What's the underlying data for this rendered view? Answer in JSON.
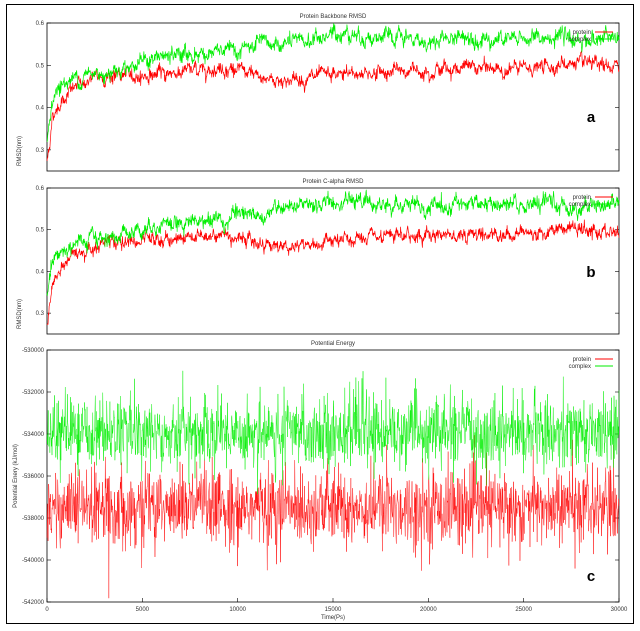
{
  "chart_data": [
    {
      "type": "line",
      "panel": "a",
      "title": "Protein Backbone RMSD",
      "xlabel": "",
      "ylabel": "RMSD(nm)",
      "xlim": [
        0,
        30000
      ],
      "ylim": [
        0.25,
        0.6
      ],
      "y_ticks": [
        "0.3",
        "0.4",
        "0.5",
        "0.6"
      ],
      "y_tick_values": [
        0.3,
        0.4,
        0.5,
        0.6
      ],
      "legend_position": "top-right",
      "series": [
        {
          "name": "protein",
          "color": "#ff0000",
          "x": [
            0,
            300,
            800,
            1500,
            2500,
            3500,
            5000,
            7000,
            9000,
            10000,
            11000,
            12500,
            14000,
            16000,
            18000,
            20000,
            22000,
            24000,
            26000,
            27500,
            29000,
            30000
          ],
          "y": [
            0.27,
            0.38,
            0.42,
            0.45,
            0.47,
            0.475,
            0.475,
            0.485,
            0.495,
            0.49,
            0.47,
            0.465,
            0.47,
            0.48,
            0.485,
            0.49,
            0.495,
            0.49,
            0.495,
            0.505,
            0.495,
            0.495
          ],
          "noise": 0.012
        },
        {
          "name": "complex",
          "color": "#00ee00",
          "x": [
            0,
            300,
            800,
            1500,
            2500,
            3500,
            5000,
            7000,
            9000,
            10000,
            11000,
            12500,
            14000,
            15500,
            17000,
            19000,
            20000,
            22000,
            24000,
            26000,
            28000,
            30000
          ],
          "y": [
            0.32,
            0.43,
            0.455,
            0.47,
            0.48,
            0.49,
            0.51,
            0.525,
            0.53,
            0.535,
            0.545,
            0.55,
            0.56,
            0.58,
            0.565,
            0.56,
            0.555,
            0.57,
            0.56,
            0.565,
            0.56,
            0.565
          ],
          "noise": 0.014
        }
      ]
    },
    {
      "type": "line",
      "panel": "b",
      "title": "Protein C-alpha RMSD",
      "xlabel": "",
      "ylabel": "RMSD(nm)",
      "xlim": [
        0,
        30000
      ],
      "ylim": [
        0.25,
        0.6
      ],
      "y_ticks": [
        "0.3",
        "0.4",
        "0.5",
        "0.6"
      ],
      "y_tick_values": [
        0.3,
        0.4,
        0.5,
        0.6
      ],
      "legend_position": "top-right",
      "series": [
        {
          "name": "protein",
          "color": "#ff0000",
          "x": [
            0,
            300,
            800,
            1500,
            2500,
            3500,
            5000,
            7000,
            9000,
            10000,
            11000,
            12500,
            14000,
            16000,
            18000,
            20000,
            22000,
            24000,
            26000,
            27500,
            29000,
            30000
          ],
          "y": [
            0.27,
            0.37,
            0.41,
            0.44,
            0.465,
            0.47,
            0.47,
            0.48,
            0.49,
            0.485,
            0.47,
            0.46,
            0.465,
            0.475,
            0.48,
            0.49,
            0.49,
            0.49,
            0.495,
            0.505,
            0.49,
            0.495
          ],
          "noise": 0.012
        },
        {
          "name": "complex",
          "color": "#00ee00",
          "x": [
            0,
            300,
            800,
            1500,
            2500,
            3500,
            5000,
            7000,
            9000,
            10000,
            11000,
            12500,
            14000,
            15500,
            17000,
            19000,
            20000,
            22000,
            24000,
            26000,
            28000,
            30000
          ],
          "y": [
            0.33,
            0.43,
            0.45,
            0.465,
            0.475,
            0.485,
            0.505,
            0.52,
            0.525,
            0.53,
            0.54,
            0.545,
            0.555,
            0.58,
            0.56,
            0.555,
            0.55,
            0.565,
            0.555,
            0.56,
            0.555,
            0.565
          ],
          "noise": 0.014
        }
      ]
    },
    {
      "type": "line",
      "panel": "c",
      "title": "Potential Energy",
      "xlabel": "Time(Ps)",
      "ylabel": "Potential Enery (kJ/mol)",
      "xlim": [
        0,
        30000
      ],
      "ylim": [
        -542000,
        -530000
      ],
      "x_ticks": [
        "0",
        "5000",
        "10000",
        "15000",
        "20000",
        "25000",
        "30000"
      ],
      "x_tick_values": [
        0,
        5000,
        10000,
        15000,
        20000,
        25000,
        30000
      ],
      "y_ticks": [
        "-530000",
        "-532000",
        "-534000",
        "-536000",
        "-538000",
        "-540000",
        "-542000"
      ],
      "y_tick_values": [
        -530000,
        -532000,
        -534000,
        -536000,
        -538000,
        -540000,
        -542000
      ],
      "legend_position": "top-right",
      "series": [
        {
          "name": "protein",
          "color": "#ff0000",
          "mean": -537500,
          "spread": 900,
          "outlier": 3000
        },
        {
          "name": "complex",
          "color": "#00ee00",
          "mean": -533900,
          "spread": 800,
          "outlier": 2700
        }
      ]
    }
  ]
}
